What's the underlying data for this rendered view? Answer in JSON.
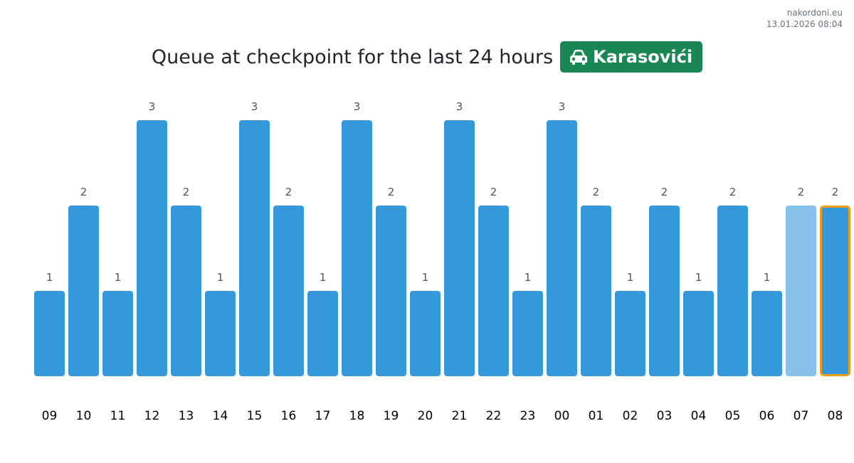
{
  "header": {
    "site": "nakordoni.eu",
    "timestamp": "13.01.2026 08:04"
  },
  "title": {
    "text": "Queue at checkpoint for the last 24 hours",
    "badge_label": "Karasovići",
    "badge_icon": "car-icon",
    "badge_color": "#198754"
  },
  "chart_data": {
    "type": "bar",
    "categories": [
      "09",
      "10",
      "11",
      "12",
      "13",
      "14",
      "15",
      "16",
      "17",
      "18",
      "19",
      "20",
      "21",
      "22",
      "23",
      "00",
      "01",
      "02",
      "03",
      "04",
      "05",
      "06",
      "07",
      "08"
    ],
    "values": [
      1,
      2,
      1,
      3,
      2,
      1,
      3,
      2,
      1,
      3,
      2,
      1,
      3,
      2,
      1,
      3,
      2,
      1,
      2,
      1,
      2,
      1,
      2,
      2
    ],
    "ylim": [
      0,
      3
    ],
    "grid": false,
    "colors": {
      "bar": "#3498db",
      "bar_previous": "#85c1e9",
      "bar_current": "#3498db",
      "current_outline": "#f39c12"
    },
    "previous_index": 22,
    "current_index": 23
  }
}
